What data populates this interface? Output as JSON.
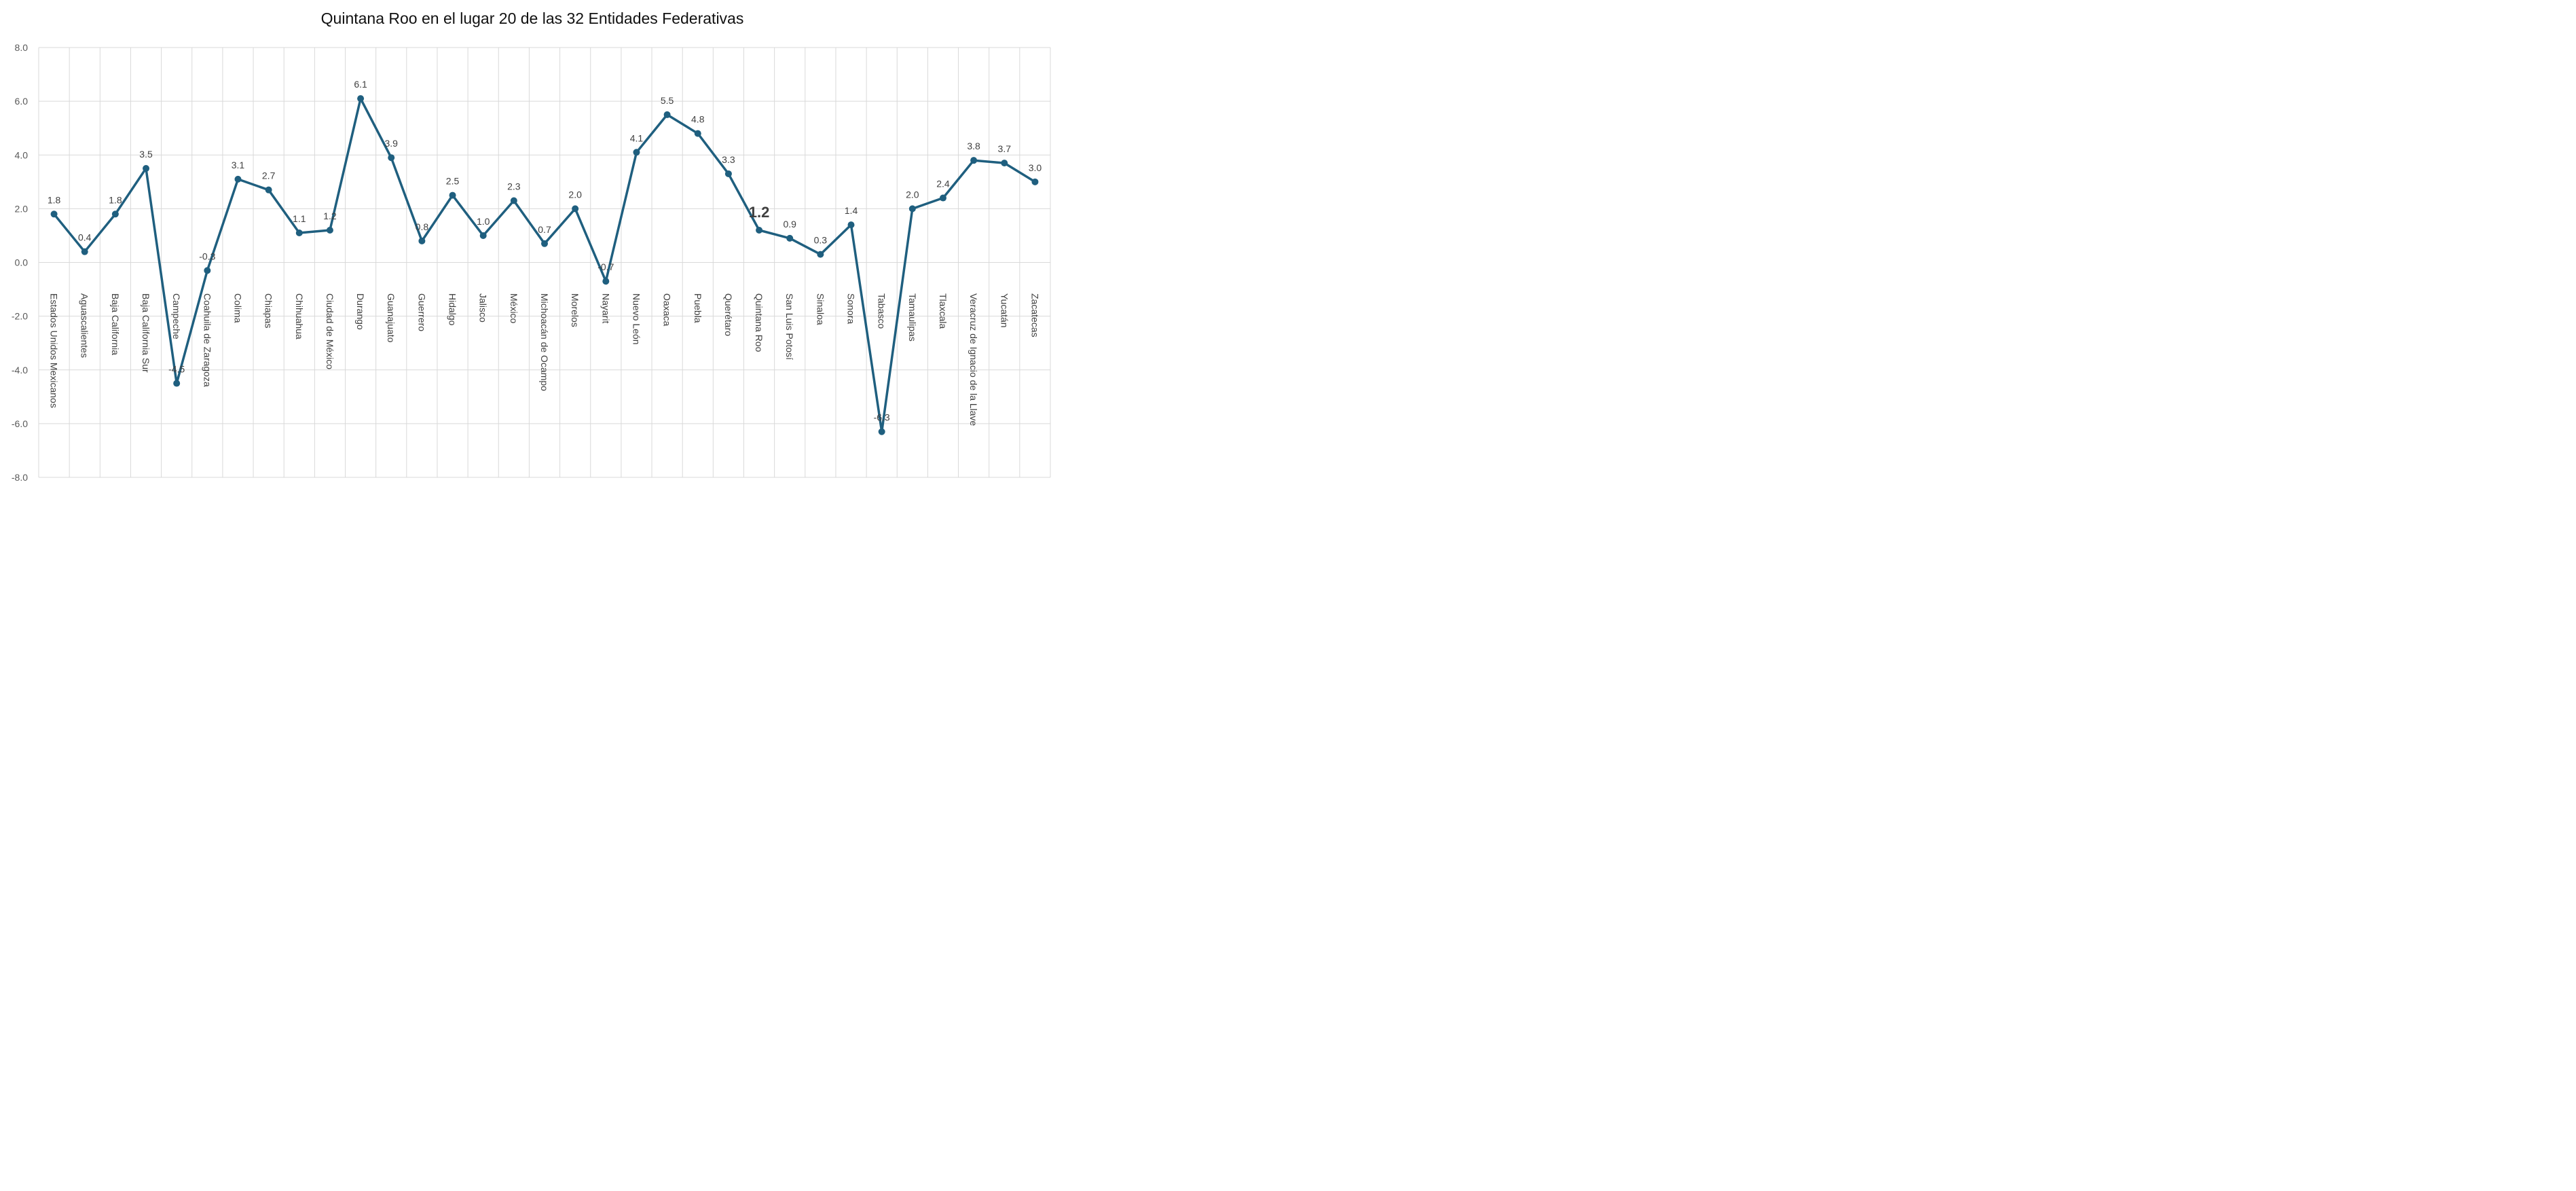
{
  "chart_data": {
    "type": "line",
    "title": "Quintana Roo en el lugar 20 de las 32 Entidades Federativas",
    "xlabel": "",
    "ylabel": "",
    "ylim": [
      -8,
      8
    ],
    "yticks": [
      "8.0",
      "6.0",
      "4.0",
      "2.0",
      "0.0",
      "-2.0",
      "-4.0",
      "-6.0",
      "-8.0"
    ],
    "grid": true,
    "legend": "none",
    "line_color": "#1F5F7F",
    "highlight_category": "Quintana Roo",
    "categories": [
      "Estados Unidos Mexicanos",
      "Aguascalientes",
      "Baja California",
      "Baja California Sur",
      "Campeche",
      "Coahuila de Zaragoza",
      "Colima",
      "Chiapas",
      "Chihuahua",
      "Ciudad de México",
      "Durango",
      "Guanajuato",
      "Guerrero",
      "Hidalgo",
      "Jalisco",
      "México",
      "Michoacán de Ocampo",
      "Morelos",
      "Nayarit",
      "Nuevo León",
      "Oaxaca",
      "Puebla",
      "Querétaro",
      "Quintana Roo",
      "San Luis Potosí",
      "Sinaloa",
      "Sonora",
      "Tabasco",
      "Tamaulipas",
      "Tlaxcala",
      "Veracruz de Ignacio de la Llave",
      "Yucatán",
      "Zacatecas"
    ],
    "series": [
      {
        "values": [
          1.8,
          0.4,
          1.8,
          3.5,
          -4.5,
          -0.3,
          3.1,
          2.7,
          1.1,
          1.2,
          6.1,
          3.9,
          0.8,
          2.5,
          1.0,
          2.3,
          0.7,
          2.0,
          -0.7,
          4.1,
          5.5,
          4.8,
          3.3,
          1.2,
          0.9,
          0.3,
          1.4,
          -6.3,
          2.0,
          2.4,
          3.8,
          3.7,
          3.0
        ],
        "labels": [
          "1.8",
          "0.4",
          "1.8",
          "3.5",
          "-4.5",
          "-0.3",
          "3.1",
          "2.7",
          "1.1",
          "1.2",
          "6.1",
          "3.9",
          "0.8",
          "2.5",
          "1.0",
          "2.3",
          "0.7",
          "2.0",
          "-0.7",
          "4.1",
          "5.5",
          "4.8",
          "3.3",
          "1.2",
          "0.9",
          "0.3",
          "1.4",
          "-6.3",
          "2.0",
          "2.4",
          "3.8",
          "3.7",
          "3.0"
        ]
      }
    ]
  }
}
